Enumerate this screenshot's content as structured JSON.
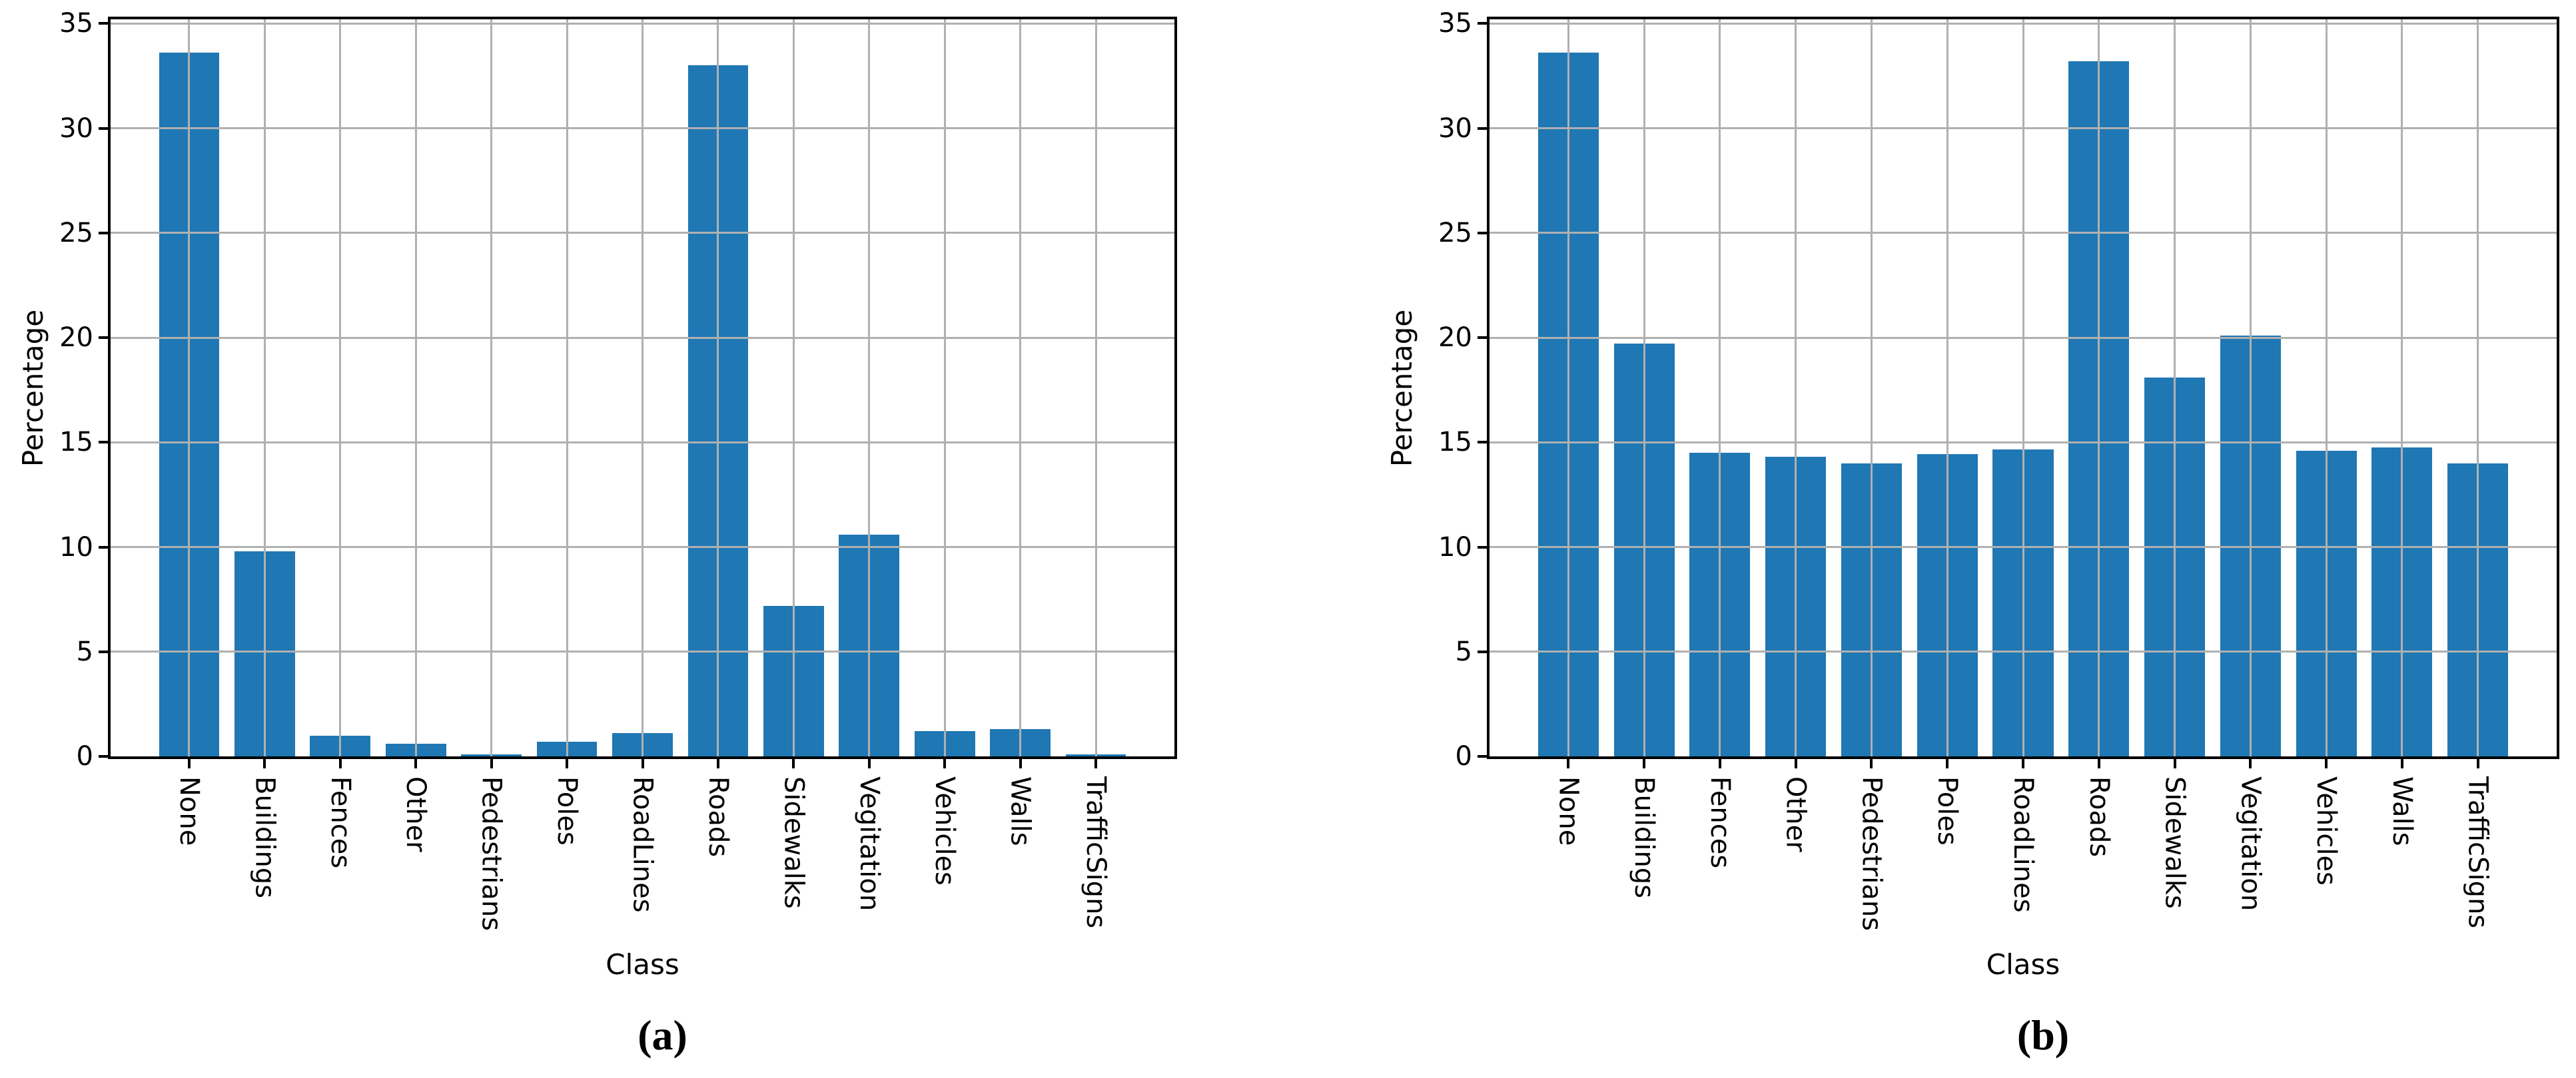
{
  "figure": {
    "background_color": "#ffffff",
    "bar_color": "#1f77b4",
    "grid_color": "#b0b0b0",
    "spine_color": "#000000",
    "text_color": "#000000"
  },
  "chart_data": [
    {
      "type": "bar",
      "panel": "a",
      "caption": "(a)",
      "title": "",
      "xlabel": "Class",
      "ylabel": "Percentage",
      "ylim": [
        0,
        35.2
      ],
      "y_ticks": [
        0,
        5,
        10,
        15,
        20,
        25,
        30,
        35
      ],
      "grid": true,
      "legend_position": "none",
      "categories": [
        "None",
        "Buildings",
        "Fences",
        "Other",
        "Pedestrians",
        "Poles",
        "RoadLines",
        "Roads",
        "Sidewalks",
        "Vegitation",
        "Vehicles",
        "Walls",
        "TrafficSigns"
      ],
      "values": [
        33.6,
        9.8,
        1.0,
        0.6,
        0.1,
        0.7,
        1.1,
        33.0,
        7.2,
        10.6,
        1.2,
        1.3,
        0.1
      ]
    },
    {
      "type": "bar",
      "panel": "b",
      "caption": "(b)",
      "title": "",
      "xlabel": "Class",
      "ylabel": "Percentage",
      "ylim": [
        0,
        35.2
      ],
      "y_ticks": [
        0,
        5,
        10,
        15,
        20,
        25,
        30,
        35
      ],
      "grid": true,
      "legend_position": "none",
      "categories": [
        "None",
        "Buildings",
        "Fences",
        "Other",
        "Pedestrians",
        "Poles",
        "RoadLines",
        "Roads",
        "Sidewalks",
        "Vegitation",
        "Vehicles",
        "Walls",
        "TrafficSigns"
      ],
      "values": [
        33.6,
        19.7,
        14.5,
        14.3,
        14.0,
        14.45,
        14.65,
        33.2,
        18.1,
        20.1,
        14.6,
        14.75,
        14.0
      ]
    }
  ]
}
